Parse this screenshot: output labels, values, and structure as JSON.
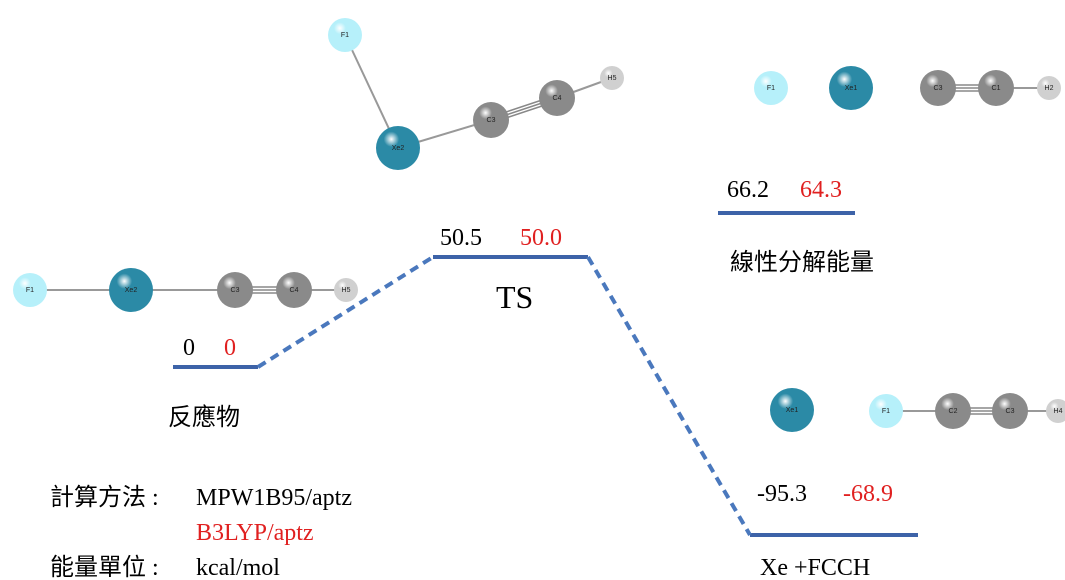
{
  "levels": [
    {
      "name": "反應物",
      "mpw": "0",
      "b3lyp": "0"
    },
    {
      "name": "TS",
      "mpw": "50.5",
      "b3lyp": "50.0"
    },
    {
      "name": "線性分解能量",
      "mpw": "66.2",
      "b3lyp": "64.3"
    },
    {
      "name": "Xe +FCCH",
      "mpw": "-95.3",
      "b3lyp": "-68.9"
    }
  ],
  "method": {
    "label": "計算方法 :",
    "values": [
      "MPW1B95/aptz",
      "B3LYP/aptz"
    ]
  },
  "unit": {
    "label": "能量單位 :",
    "value": "kcal/mol"
  },
  "molecules": [
    {
      "atoms": [
        "F1",
        "Xe2",
        "C3",
        "C4",
        "H5"
      ]
    },
    {
      "atoms": [
        "F1",
        "Xe1",
        "C3",
        "C1",
        "H2"
      ]
    },
    {
      "atoms": [
        "F1",
        "Xe2",
        "C3",
        "C4",
        "H5"
      ]
    },
    {
      "atoms": [
        "Xe1",
        "F1",
        "C2",
        "C3",
        "H4"
      ]
    }
  ]
}
